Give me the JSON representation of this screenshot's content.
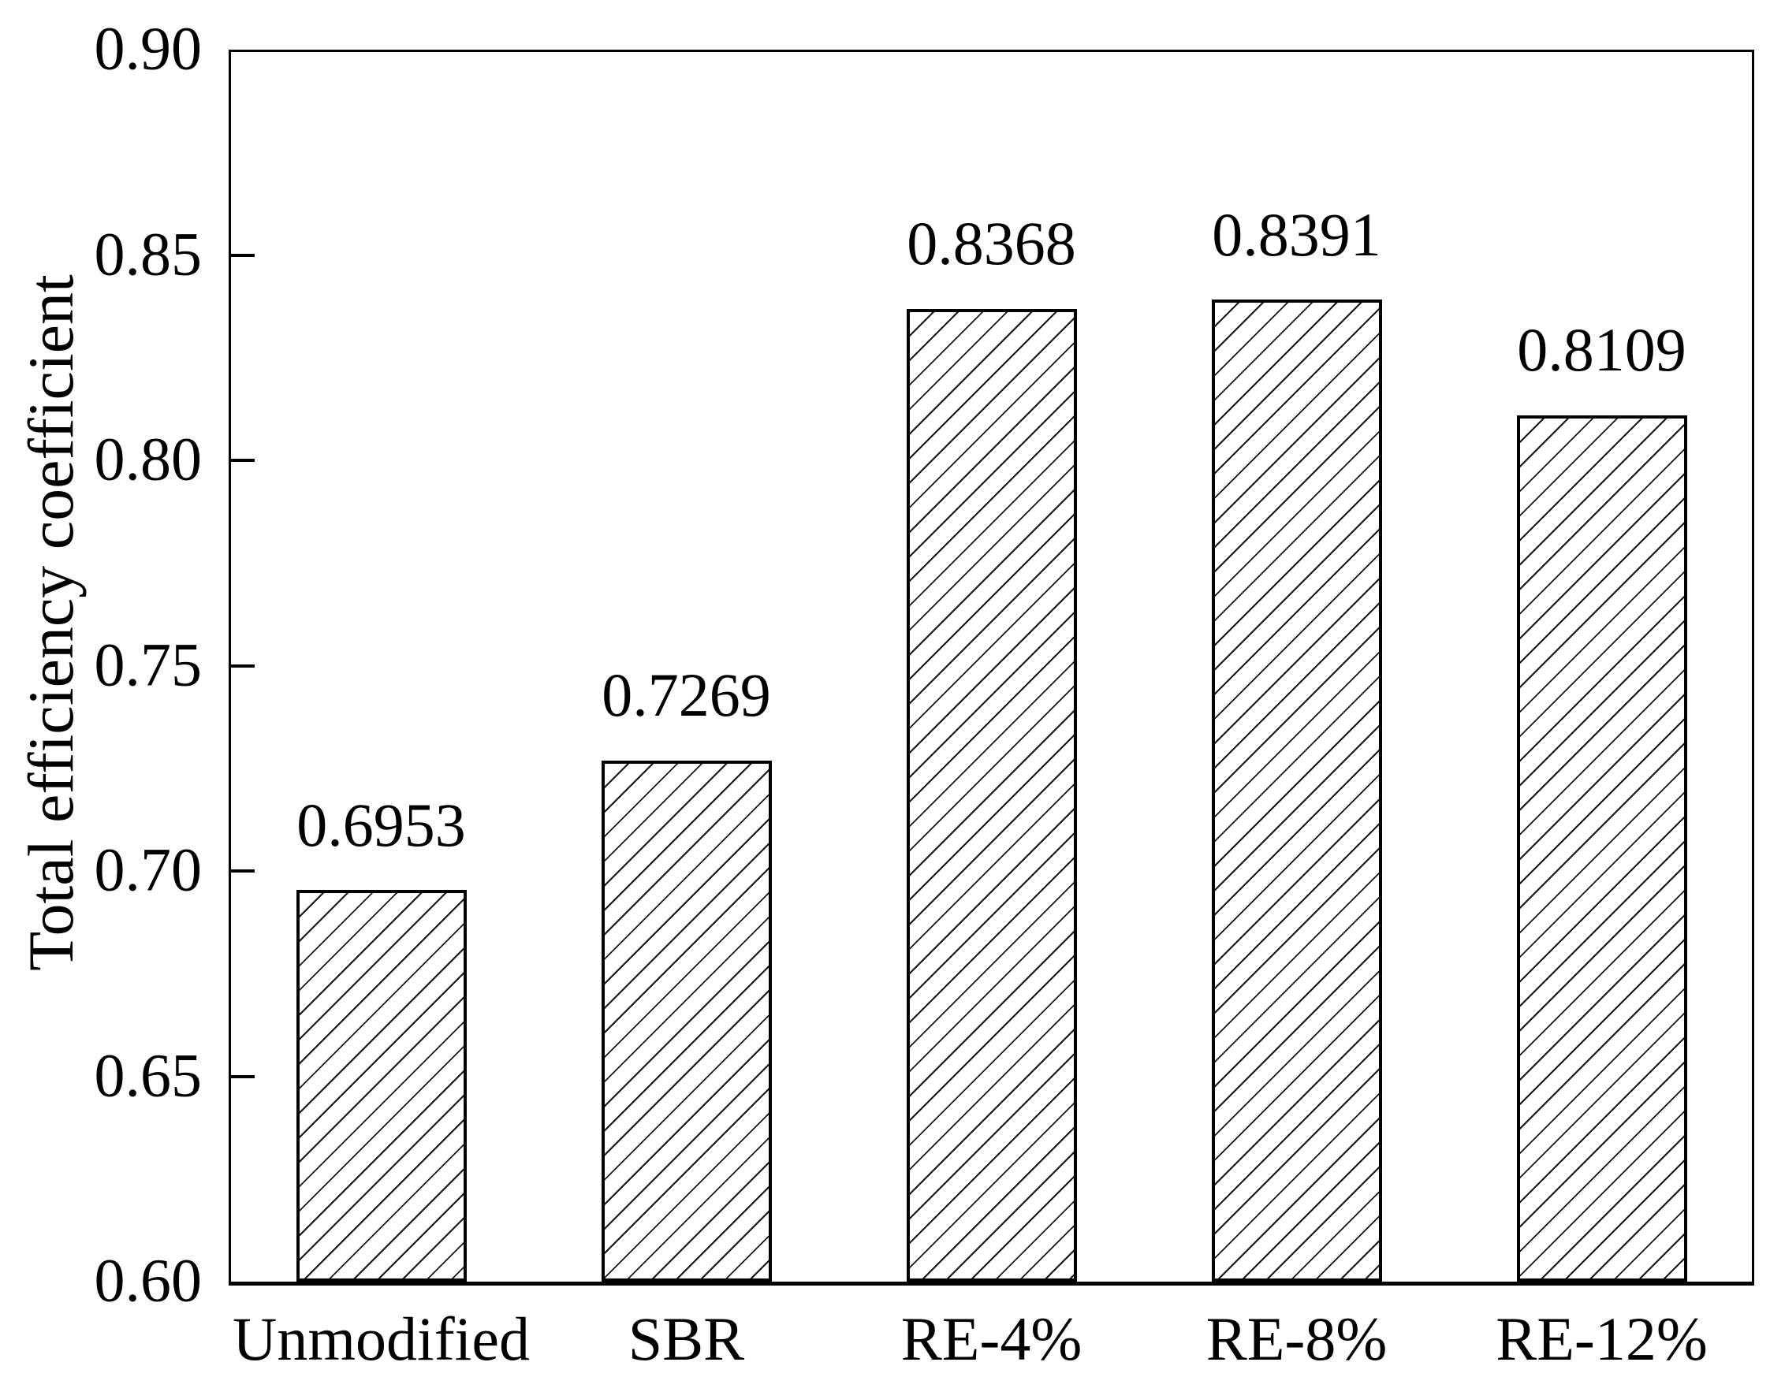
{
  "chart_data": {
    "type": "bar",
    "title": "",
    "xlabel": "",
    "ylabel": "Total efficiency coefficient",
    "categories": [
      "Unmodified",
      "SBR",
      "RE-4%",
      "RE-8%",
      "RE-12%"
    ],
    "values": [
      0.6953,
      0.7269,
      0.8368,
      0.8391,
      0.8109
    ],
    "value_labels": [
      "0.6953",
      "0.7269",
      "0.8368",
      "0.8391",
      "0.8109"
    ],
    "ylim": [
      0.6,
      0.9
    ],
    "yticks": [
      "0.90",
      "0.85",
      "0.80",
      "0.75",
      "0.70",
      "0.65",
      "0.60"
    ],
    "grid": false,
    "legend": false,
    "style": {
      "bar_fill": "#ffffff",
      "bar_hatch": "forward-diagonal",
      "bar_border": "#000000",
      "text_color": "#000000",
      "background": "#ffffff"
    }
  }
}
